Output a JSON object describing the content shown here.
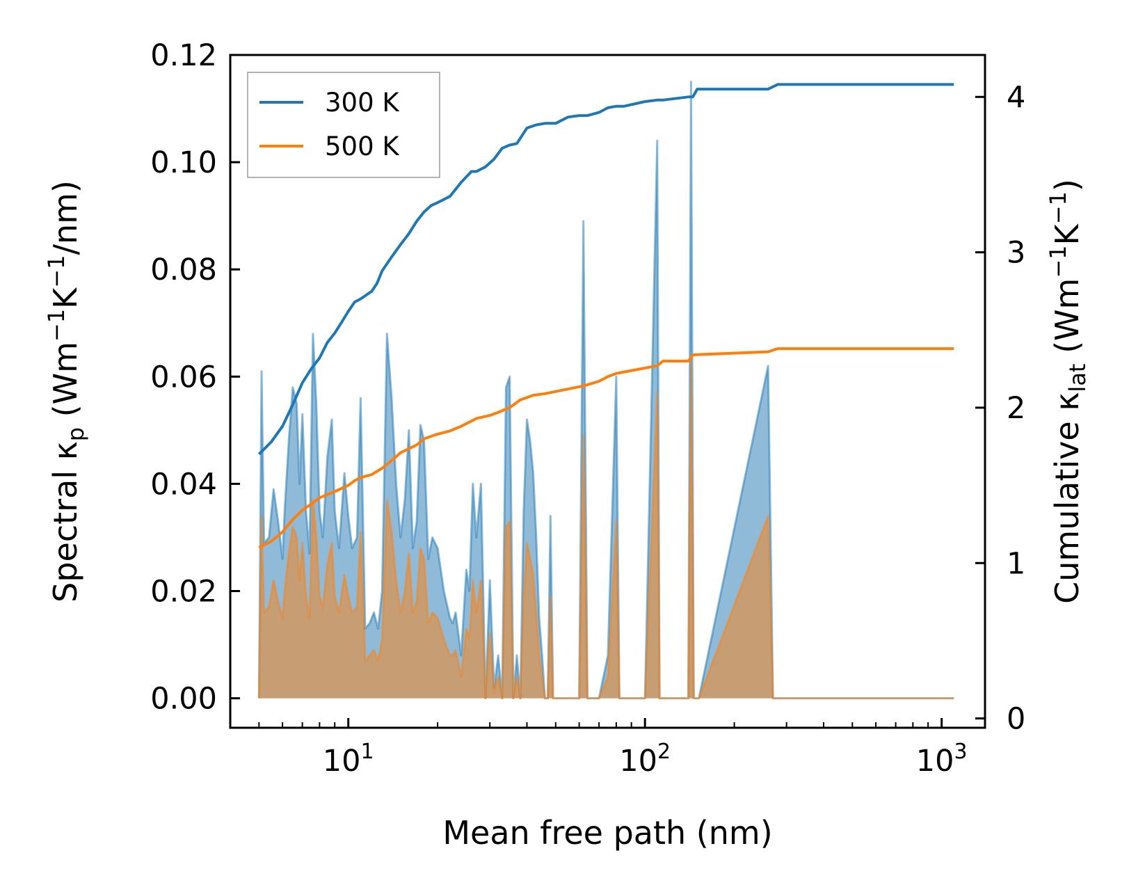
{
  "chart_data": {
    "type": "line",
    "title": "",
    "xlabel": "Mean free path (nm)",
    "xscale": "log",
    "xlim": [
      4.0,
      1400
    ],
    "x_tick_labels": [
      {
        "value": 10,
        "base": "10",
        "exp": "1"
      },
      {
        "value": 100,
        "base": "10",
        "exp": "2"
      },
      {
        "value": 1000,
        "base": "10",
        "exp": "3"
      }
    ],
    "ylabel_left": {
      "prefix": "Spectral κ",
      "sub": "p",
      "mid": " (Wm",
      "sup1": "−1",
      "mid2": "K",
      "sup2": "−1",
      "suffix": "/nm)"
    },
    "ylim_left": [
      -0.0055,
      0.12
    ],
    "yticks_left": [
      0.0,
      0.02,
      0.04,
      0.06,
      0.08,
      0.1,
      0.12
    ],
    "ytick_labels_left": [
      "0.00",
      "0.02",
      "0.04",
      "0.06",
      "0.08",
      "0.10",
      "0.12"
    ],
    "ylabel_right": {
      "prefix": "Cumulative κ",
      "sub": "lat",
      "mid": " (Wm",
      "sup1": "−1",
      "mid2": "K",
      "sup2": "−1",
      "suffix": ")"
    },
    "ylim_right": [
      -0.06,
      4.27
    ],
    "yticks_right": [
      0,
      1,
      2,
      3,
      4
    ],
    "ytick_labels_right": [
      "0",
      "1",
      "2",
      "3",
      "4"
    ],
    "legend": {
      "placement": "top-left",
      "entries": [
        "300 K",
        "500 K"
      ]
    },
    "colors": {
      "300 K": "#1f77b4",
      "500 K": "#ff7f0e"
    },
    "cumulative_series": [
      {
        "name": "300 K",
        "axis": "right",
        "x": [
          5.0,
          5.5,
          6.0,
          6.5,
          7.0,
          7.5,
          8.0,
          8.5,
          9.0,
          9.5,
          10.0,
          10.5,
          11.0,
          12.0,
          12.5,
          13.0,
          14.0,
          15.0,
          16.0,
          17.0,
          18.0,
          19.0,
          20.0,
          22.0,
          24.0,
          26.0,
          27.0,
          29.0,
          31.0,
          33.0,
          35.0,
          37.0,
          40.0,
          43.0,
          46.0,
          50.0,
          55.0,
          60.0,
          64.0,
          70.0,
          75.0,
          80.0,
          85.0,
          100.0,
          110.0,
          115.0,
          140.0,
          145.0,
          150.0,
          260.0,
          280.0,
          1100.0
        ],
        "values": [
          1.7,
          1.78,
          1.88,
          2.02,
          2.16,
          2.25,
          2.32,
          2.42,
          2.48,
          2.55,
          2.62,
          2.68,
          2.7,
          2.75,
          2.8,
          2.88,
          2.97,
          3.05,
          3.12,
          3.2,
          3.26,
          3.3,
          3.32,
          3.36,
          3.45,
          3.52,
          3.52,
          3.55,
          3.6,
          3.67,
          3.69,
          3.7,
          3.8,
          3.82,
          3.83,
          3.83,
          3.87,
          3.88,
          3.88,
          3.9,
          3.93,
          3.94,
          3.94,
          3.97,
          3.98,
          3.98,
          4.0,
          4.0,
          4.05,
          4.05,
          4.08,
          4.08
        ]
      },
      {
        "name": "500 K",
        "axis": "right",
        "x": [
          5.0,
          5.5,
          6.0,
          6.5,
          7.0,
          7.5,
          8.0,
          9.0,
          10.0,
          10.5,
          11.0,
          12.0,
          13.0,
          14.0,
          15.0,
          17.0,
          18.0,
          20.0,
          22.0,
          24.0,
          27.0,
          30.0,
          32.0,
          35.0,
          38.0,
          42.0,
          46.0,
          55.0,
          62.0,
          70.0,
          75.0,
          80.0,
          85.0,
          110.0,
          115.0,
          140.0,
          145.0,
          260.0,
          280.0,
          1100.0
        ],
        "values": [
          1.1,
          1.14,
          1.2,
          1.28,
          1.34,
          1.38,
          1.42,
          1.46,
          1.5,
          1.53,
          1.55,
          1.57,
          1.61,
          1.66,
          1.71,
          1.76,
          1.8,
          1.83,
          1.85,
          1.88,
          1.93,
          1.95,
          1.97,
          2.0,
          2.05,
          2.08,
          2.09,
          2.12,
          2.14,
          2.17,
          2.2,
          2.22,
          2.23,
          2.27,
          2.3,
          2.3,
          2.34,
          2.36,
          2.38,
          2.38
        ]
      }
    ],
    "spectral_series": [
      {
        "name": "300 K",
        "axis": "left",
        "x": [
          5.0,
          5.1,
          5.2,
          5.4,
          5.6,
          5.8,
          6.0,
          6.1,
          6.3,
          6.5,
          6.7,
          6.85,
          7.0,
          7.2,
          7.4,
          7.6,
          7.8,
          8.0,
          8.2,
          8.5,
          8.8,
          9.0,
          9.3,
          9.7,
          10.0,
          10.3,
          10.7,
          11.0,
          11.4,
          11.8,
          12.2,
          12.6,
          13.0,
          13.5,
          14.0,
          14.5,
          15.0,
          15.5,
          16.0,
          16.5,
          17.0,
          17.5,
          18.0,
          18.6,
          19.2,
          20.0,
          21.0,
          22.0,
          22.5,
          23.0,
          24.0,
          25.0,
          25.6,
          26.3,
          27.0,
          28.0,
          29.0,
          30.0,
          31.0,
          32.0,
          33.0,
          34.0,
          35.0,
          36.0,
          37.0,
          38.0,
          39.0,
          40.0,
          41.0,
          42.0,
          43.0,
          44.0,
          45.0,
          46.0,
          47.0,
          48.0,
          49.0,
          50.0,
          55.0,
          60.0,
          62.0,
          64.0,
          65.0,
          70.0,
          75.0,
          80.0,
          82.0,
          84.0,
          86.0,
          100.0,
          110.0,
          112.0,
          115.0,
          118.0,
          140.0,
          143.0,
          146.0,
          149.0,
          152.0,
          260.0,
          270.0,
          276.0,
          283.0,
          290.0,
          1100.0
        ],
        "values": [
          0.0,
          0.061,
          0.029,
          0.03,
          0.039,
          0.033,
          0.026,
          0.035,
          0.048,
          0.058,
          0.055,
          0.04,
          0.053,
          0.035,
          0.027,
          0.068,
          0.055,
          0.035,
          0.03,
          0.045,
          0.052,
          0.035,
          0.028,
          0.042,
          0.034,
          0.028,
          0.03,
          0.056,
          0.013,
          0.014,
          0.016,
          0.013,
          0.02,
          0.068,
          0.056,
          0.04,
          0.03,
          0.037,
          0.05,
          0.028,
          0.033,
          0.051,
          0.048,
          0.026,
          0.03,
          0.028,
          0.02,
          0.015,
          0.014,
          0.016,
          0.008,
          0.024,
          0.02,
          0.04,
          0.03,
          0.04,
          0.0,
          0.022,
          0.002,
          0.008,
          0.0,
          0.058,
          0.06,
          0.0,
          0.008,
          0.0,
          0.035,
          0.052,
          0.048,
          0.042,
          0.03,
          0.015,
          0.008,
          0.0,
          0.0,
          0.034,
          0.0,
          0.0,
          0.0,
          0.0,
          0.089,
          0.0,
          0.0,
          0.0,
          0.008,
          0.06,
          0.0,
          0.0,
          0.0,
          0.0,
          0.104,
          0.0,
          0.0,
          0.0,
          0.0,
          0.115,
          0.0,
          0.0,
          0.0,
          0.062,
          0.0,
          0.0,
          0.0,
          0.0,
          0.0
        ]
      },
      {
        "name": "500 K",
        "axis": "left",
        "x": [
          5.0,
          5.1,
          5.2,
          5.4,
          5.6,
          5.8,
          6.0,
          6.1,
          6.3,
          6.5,
          6.7,
          6.85,
          7.0,
          7.2,
          7.4,
          7.6,
          7.8,
          8.0,
          8.2,
          8.5,
          8.8,
          9.0,
          9.3,
          9.7,
          10.0,
          10.3,
          10.7,
          11.0,
          11.4,
          11.8,
          12.2,
          12.6,
          13.0,
          13.5,
          14.0,
          14.5,
          15.0,
          15.5,
          16.0,
          16.5,
          17.0,
          17.5,
          18.0,
          18.6,
          19.2,
          20.0,
          21.0,
          22.0,
          22.5,
          23.0,
          24.0,
          25.0,
          25.6,
          26.3,
          27.0,
          28.0,
          29.0,
          30.0,
          31.0,
          32.0,
          33.0,
          34.0,
          35.0,
          36.0,
          37.0,
          38.0,
          39.0,
          40.0,
          41.0,
          42.0,
          43.0,
          44.0,
          45.0,
          46.0,
          47.0,
          48.0,
          49.0,
          50.0,
          55.0,
          60.0,
          62.0,
          64.0,
          65.0,
          70.0,
          75.0,
          80.0,
          82.0,
          84.0,
          86.0,
          100.0,
          110.0,
          112.0,
          115.0,
          118.0,
          140.0,
          143.0,
          146.0,
          149.0,
          152.0,
          260.0,
          270.0,
          276.0,
          283.0,
          290.0,
          1100.0
        ],
        "values": [
          0.0,
          0.034,
          0.016,
          0.017,
          0.022,
          0.018,
          0.015,
          0.02,
          0.027,
          0.032,
          0.03,
          0.022,
          0.029,
          0.019,
          0.015,
          0.037,
          0.03,
          0.019,
          0.017,
          0.025,
          0.029,
          0.019,
          0.016,
          0.023,
          0.019,
          0.016,
          0.017,
          0.031,
          0.007,
          0.008,
          0.009,
          0.007,
          0.011,
          0.037,
          0.031,
          0.022,
          0.016,
          0.02,
          0.027,
          0.016,
          0.018,
          0.028,
          0.026,
          0.014,
          0.016,
          0.015,
          0.011,
          0.008,
          0.008,
          0.009,
          0.004,
          0.013,
          0.011,
          0.022,
          0.016,
          0.022,
          0.0,
          0.012,
          0.001,
          0.004,
          0.0,
          0.032,
          0.033,
          0.0,
          0.004,
          0.0,
          0.019,
          0.029,
          0.026,
          0.023,
          0.016,
          0.008,
          0.004,
          0.0,
          0.0,
          0.019,
          0.0,
          0.0,
          0.0,
          0.0,
          0.049,
          0.0,
          0.0,
          0.0,
          0.004,
          0.033,
          0.0,
          0.0,
          0.0,
          0.0,
          0.057,
          0.0,
          0.0,
          0.0,
          0.0,
          0.063,
          0.0,
          0.0,
          0.0,
          0.034,
          0.0,
          0.0,
          0.0,
          0.0,
          0.0
        ]
      }
    ]
  }
}
